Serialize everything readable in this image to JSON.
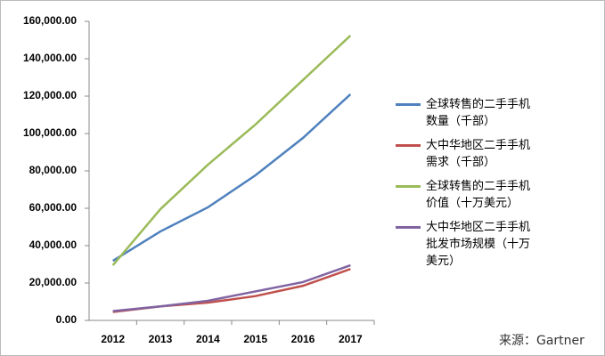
{
  "chart_data": {
    "type": "line",
    "categories": [
      "2012",
      "2013",
      "2014",
      "2015",
      "2016",
      "2017"
    ],
    "series": [
      {
        "name": "全球转售的二手手机数量（千部）",
        "color": "#4f81bd",
        "values": [
          31900,
          47600,
          60500,
          77600,
          97600,
          121000
        ]
      },
      {
        "name": "大中华地区二手手机需求（千部）",
        "color": "#c0504d",
        "values": [
          4500,
          7500,
          9500,
          13000,
          18500,
          27500
        ]
      },
      {
        "name": "全球转售的二手手机价值（十万美元）",
        "color": "#9bbb59",
        "values": [
          29500,
          59500,
          83300,
          104800,
          128600,
          152400
        ]
      },
      {
        "name": "大中华地区二手手机批发市场规模（十万美元）",
        "color": "#8064a2",
        "values": [
          5000,
          7500,
          10500,
          15500,
          20500,
          29500
        ]
      }
    ],
    "ylim": [
      0,
      160000
    ],
    "yticks": [
      {
        "value": 0,
        "label": "0.00"
      },
      {
        "value": 20000,
        "label": "20,000.00"
      },
      {
        "value": 40000,
        "label": "40,000.00"
      },
      {
        "value": 60000,
        "label": "60,000.00"
      },
      {
        "value": 80000,
        "label": "80,000.00"
      },
      {
        "value": 100000,
        "label": "100,000.00"
      },
      {
        "value": 120000,
        "label": "120,000.00"
      },
      {
        "value": 140000,
        "label": "140,000.00"
      },
      {
        "value": 160000,
        "label": "160,000.00"
      }
    ],
    "grid": false,
    "legend": "right",
    "source": "来源：Gartner"
  }
}
